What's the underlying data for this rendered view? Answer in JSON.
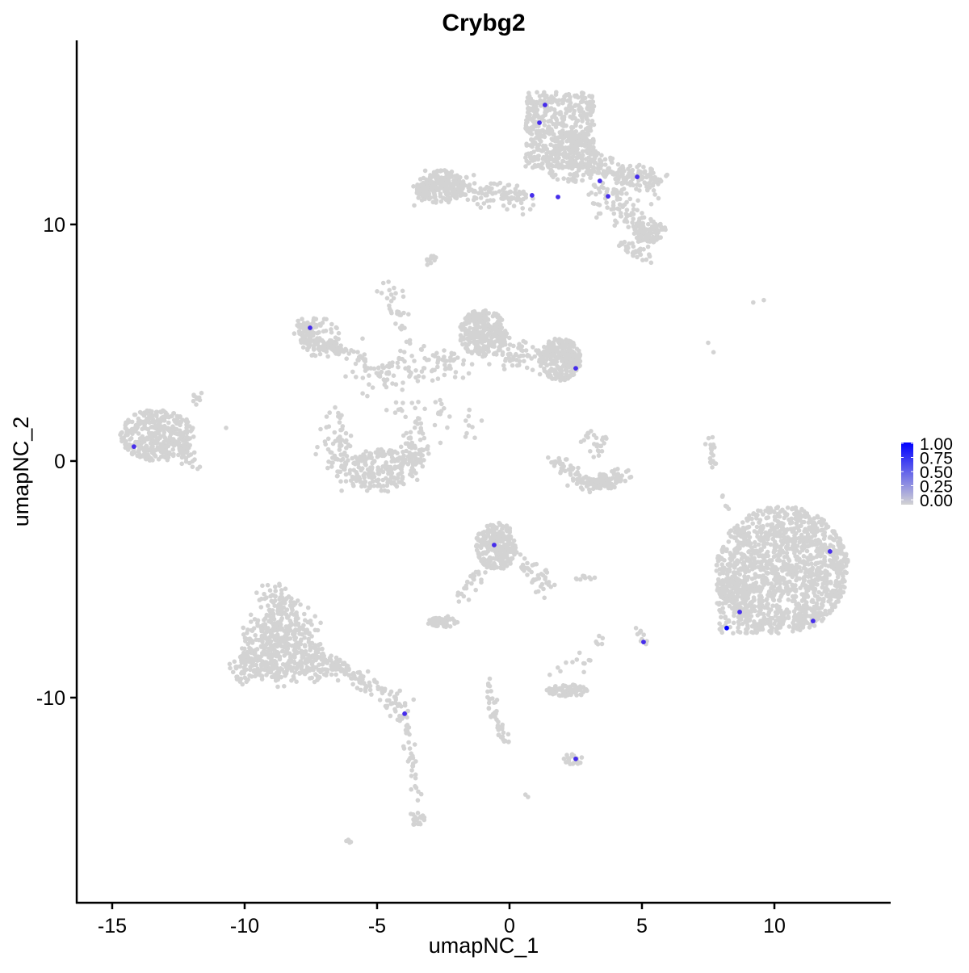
{
  "chart_data": {
    "type": "scatter",
    "title": "Crybg2",
    "xlabel": "umapNC_1",
    "ylabel": "umapNC_2",
    "xlim": [
      -16.34,
      14.39
    ],
    "ylim": [
      -18.67,
      17.78
    ],
    "xticks": [
      -15,
      -10,
      -5,
      0,
      5,
      10
    ],
    "yticks": [
      -10,
      0,
      10
    ],
    "xtick_labels": [
      "-15",
      "-10",
      "-5",
      "0",
      "5",
      "10"
    ],
    "ytick_labels": [
      "-10",
      "0",
      "10"
    ],
    "grid": false,
    "colors": {
      "low": "#d3d3d3",
      "high": "#0000ff"
    },
    "legend": {
      "position": "right",
      "type": "colorbar",
      "range": [
        0,
        1
      ],
      "labels": [
        "1.00",
        "0.75",
        "0.50",
        "0.25",
        "0.00"
      ]
    },
    "background_value": 0,
    "expressed_points": [
      {
        "x": 1.34,
        "y": 15.05,
        "value": 0.55
      },
      {
        "x": 1.13,
        "y": 14.3,
        "value": 0.55
      },
      {
        "x": 0.85,
        "y": 11.23,
        "value": 0.55
      },
      {
        "x": 1.83,
        "y": 11.16,
        "value": 0.55
      },
      {
        "x": 3.41,
        "y": 11.84,
        "value": 0.55
      },
      {
        "x": 3.72,
        "y": 11.19,
        "value": 0.55
      },
      {
        "x": 4.82,
        "y": 12.01,
        "value": 0.55
      },
      {
        "x": -7.53,
        "y": 5.63,
        "value": 0.55
      },
      {
        "x": 2.5,
        "y": 3.92,
        "value": 0.55
      },
      {
        "x": -14.18,
        "y": 0.61,
        "value": 0.55
      },
      {
        "x": -0.58,
        "y": -3.55,
        "value": 0.55
      },
      {
        "x": 12.1,
        "y": -3.82,
        "value": 0.55
      },
      {
        "x": 8.69,
        "y": -6.38,
        "value": 0.55
      },
      {
        "x": 8.2,
        "y": -7.06,
        "value": 1.0
      },
      {
        "x": 11.46,
        "y": -6.76,
        "value": 0.55
      },
      {
        "x": 5.06,
        "y": -7.65,
        "value": 0.55
      },
      {
        "x": -3.96,
        "y": -10.68,
        "value": 0.55
      },
      {
        "x": 2.5,
        "y": -12.59,
        "value": 0.55
      }
    ]
  }
}
